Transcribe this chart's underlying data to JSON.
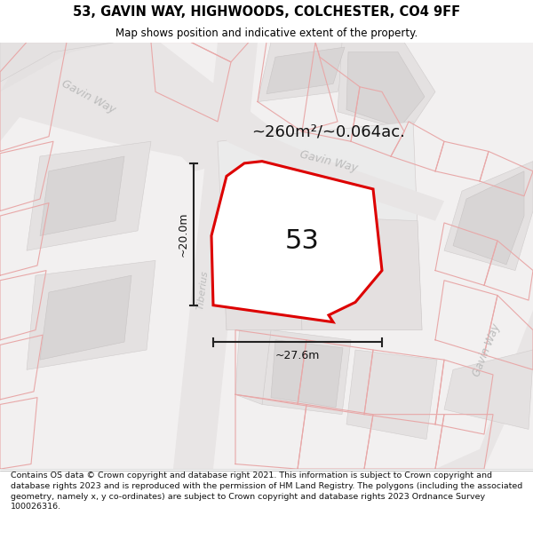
{
  "title": "53, GAVIN WAY, HIGHWOODS, COLCHESTER, CO4 9FF",
  "subtitle": "Map shows position and indicative extent of the property.",
  "footer": "Contains OS data © Crown copyright and database right 2021. This information is subject to Crown copyright and database rights 2023 and is reproduced with the permission of HM Land Registry. The polygons (including the associated geometry, namely x, y co-ordinates) are subject to Crown copyright and database rights 2023 Ordnance Survey 100026316.",
  "area_label": "~260m²/~0.064ac.",
  "plot_number": "53",
  "width_label": "~27.6m",
  "height_label": "~20.0m",
  "bg_color": "#ffffff",
  "map_bg": "#f7f6f6",
  "road_fill": "#e8e5e5",
  "block_fill": "#e4e1e1",
  "building_fill": "#d8d5d5",
  "plot_line_color": "#dd0000",
  "plot_fill_color": "#ffffff",
  "thin_red": "#e8a8a8",
  "road_label_color": "#bbbbbb",
  "dim_color": "#222222",
  "title_fontsize": 10.5,
  "subtitle_fontsize": 8.5,
  "footer_fontsize": 6.8
}
